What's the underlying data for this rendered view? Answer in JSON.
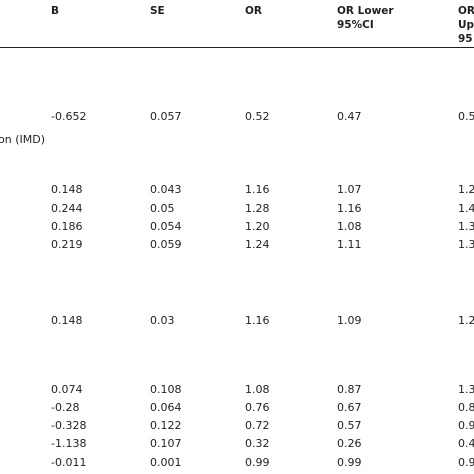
{
  "table": {
    "headers": {
      "b": "B",
      "se": "SE",
      "or": "OR",
      "or_lower_line1": "OR Lower",
      "or_lower_line2": "95%CI",
      "or_upper_line1": "OR",
      "or_upper_line2": "Up",
      "or_upper_line3": "95"
    },
    "row_label_fragment": "on (IMD)",
    "rows": [
      {
        "b": "-0.652",
        "se": "0.057",
        "or": "0.52",
        "lower": "0.47",
        "upper": "0.5"
      },
      {
        "b": "0.148",
        "se": "0.043",
        "or": "1.16",
        "lower": "1.07",
        "upper": "1.2"
      },
      {
        "b": "0.244",
        "se": "0.05",
        "or": "1.28",
        "lower": "1.16",
        "upper": "1.4"
      },
      {
        "b": "0.186",
        "se": "0.054",
        "or": "1.20",
        "lower": "1.08",
        "upper": "1.3"
      },
      {
        "b": "0.219",
        "se": "0.059",
        "or": "1.24",
        "lower": "1.11",
        "upper": "1.3"
      },
      {
        "b": "0.148",
        "se": "0.03",
        "or": "1.16",
        "lower": "1.09",
        "upper": "1.2"
      },
      {
        "b": "0.074",
        "se": "0.108",
        "or": "1.08",
        "lower": "0.87",
        "upper": "1.3"
      },
      {
        "b": "-0.28",
        "se": "0.064",
        "or": "0.76",
        "lower": "0.67",
        "upper": "0.8"
      },
      {
        "b": "-0.328",
        "se": "0.122",
        "or": "0.72",
        "lower": "0.57",
        "upper": "0.9"
      },
      {
        "b": "-1.138",
        "se": "0.107",
        "or": "0.32",
        "lower": "0.26",
        "upper": "0.4"
      },
      {
        "b": "-0.011",
        "se": "0.001",
        "or": "0.99",
        "lower": "0.99",
        "upper": "0.9"
      }
    ]
  }
}
